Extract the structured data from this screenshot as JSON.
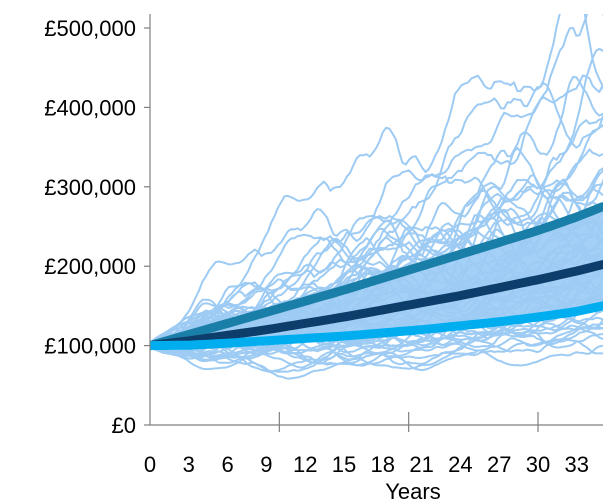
{
  "chart_data": {
    "type": "line",
    "title": "",
    "xlabel": "Years",
    "ylabel": "",
    "xlim": [
      0,
      35
    ],
    "ylim": [
      0,
      500000
    ],
    "x_ticks": [
      "0",
      "3",
      "6",
      "9",
      "12",
      "15",
      "18",
      "21",
      "24",
      "27",
      "30",
      "33"
    ],
    "y_ticks": [
      "£0",
      "£100,000",
      "£200,000",
      "£300,000",
      "£400,000",
      "£500,000"
    ],
    "grid": false,
    "legend": "none",
    "series": [
      {
        "color": "#1a7fa8",
        "x": [
          0,
          3,
          6,
          9,
          12,
          15,
          18,
          21,
          24,
          27,
          30,
          33,
          35
        ],
        "values": [
          100000,
          114000,
          128000,
          142000,
          156000,
          170000,
          185000,
          200000,
          215000,
          230000,
          245000,
          262000,
          275000
        ]
      },
      {
        "color": "#0d3e6b",
        "x": [
          0,
          3,
          6,
          9,
          12,
          15,
          18,
          21,
          24,
          27,
          30,
          33,
          35
        ],
        "values": [
          100000,
          106000,
          113000,
          120000,
          128000,
          136000,
          145000,
          154000,
          163000,
          173000,
          183000,
          194000,
          202000
        ]
      },
      {
        "color": "#00aeef",
        "x": [
          0,
          3,
          6,
          9,
          12,
          15,
          18,
          21,
          24,
          27,
          30,
          33,
          35
        ],
        "values": [
          100000,
          100500,
          103000,
          106000,
          109000,
          112000,
          116000,
          120000,
          125000,
          130000,
          136000,
          143000,
          150000
        ]
      }
    ],
    "simulation_paths": {
      "count": 60,
      "color": "#9dcbf3",
      "band_color": "#a4d0f7"
    }
  }
}
